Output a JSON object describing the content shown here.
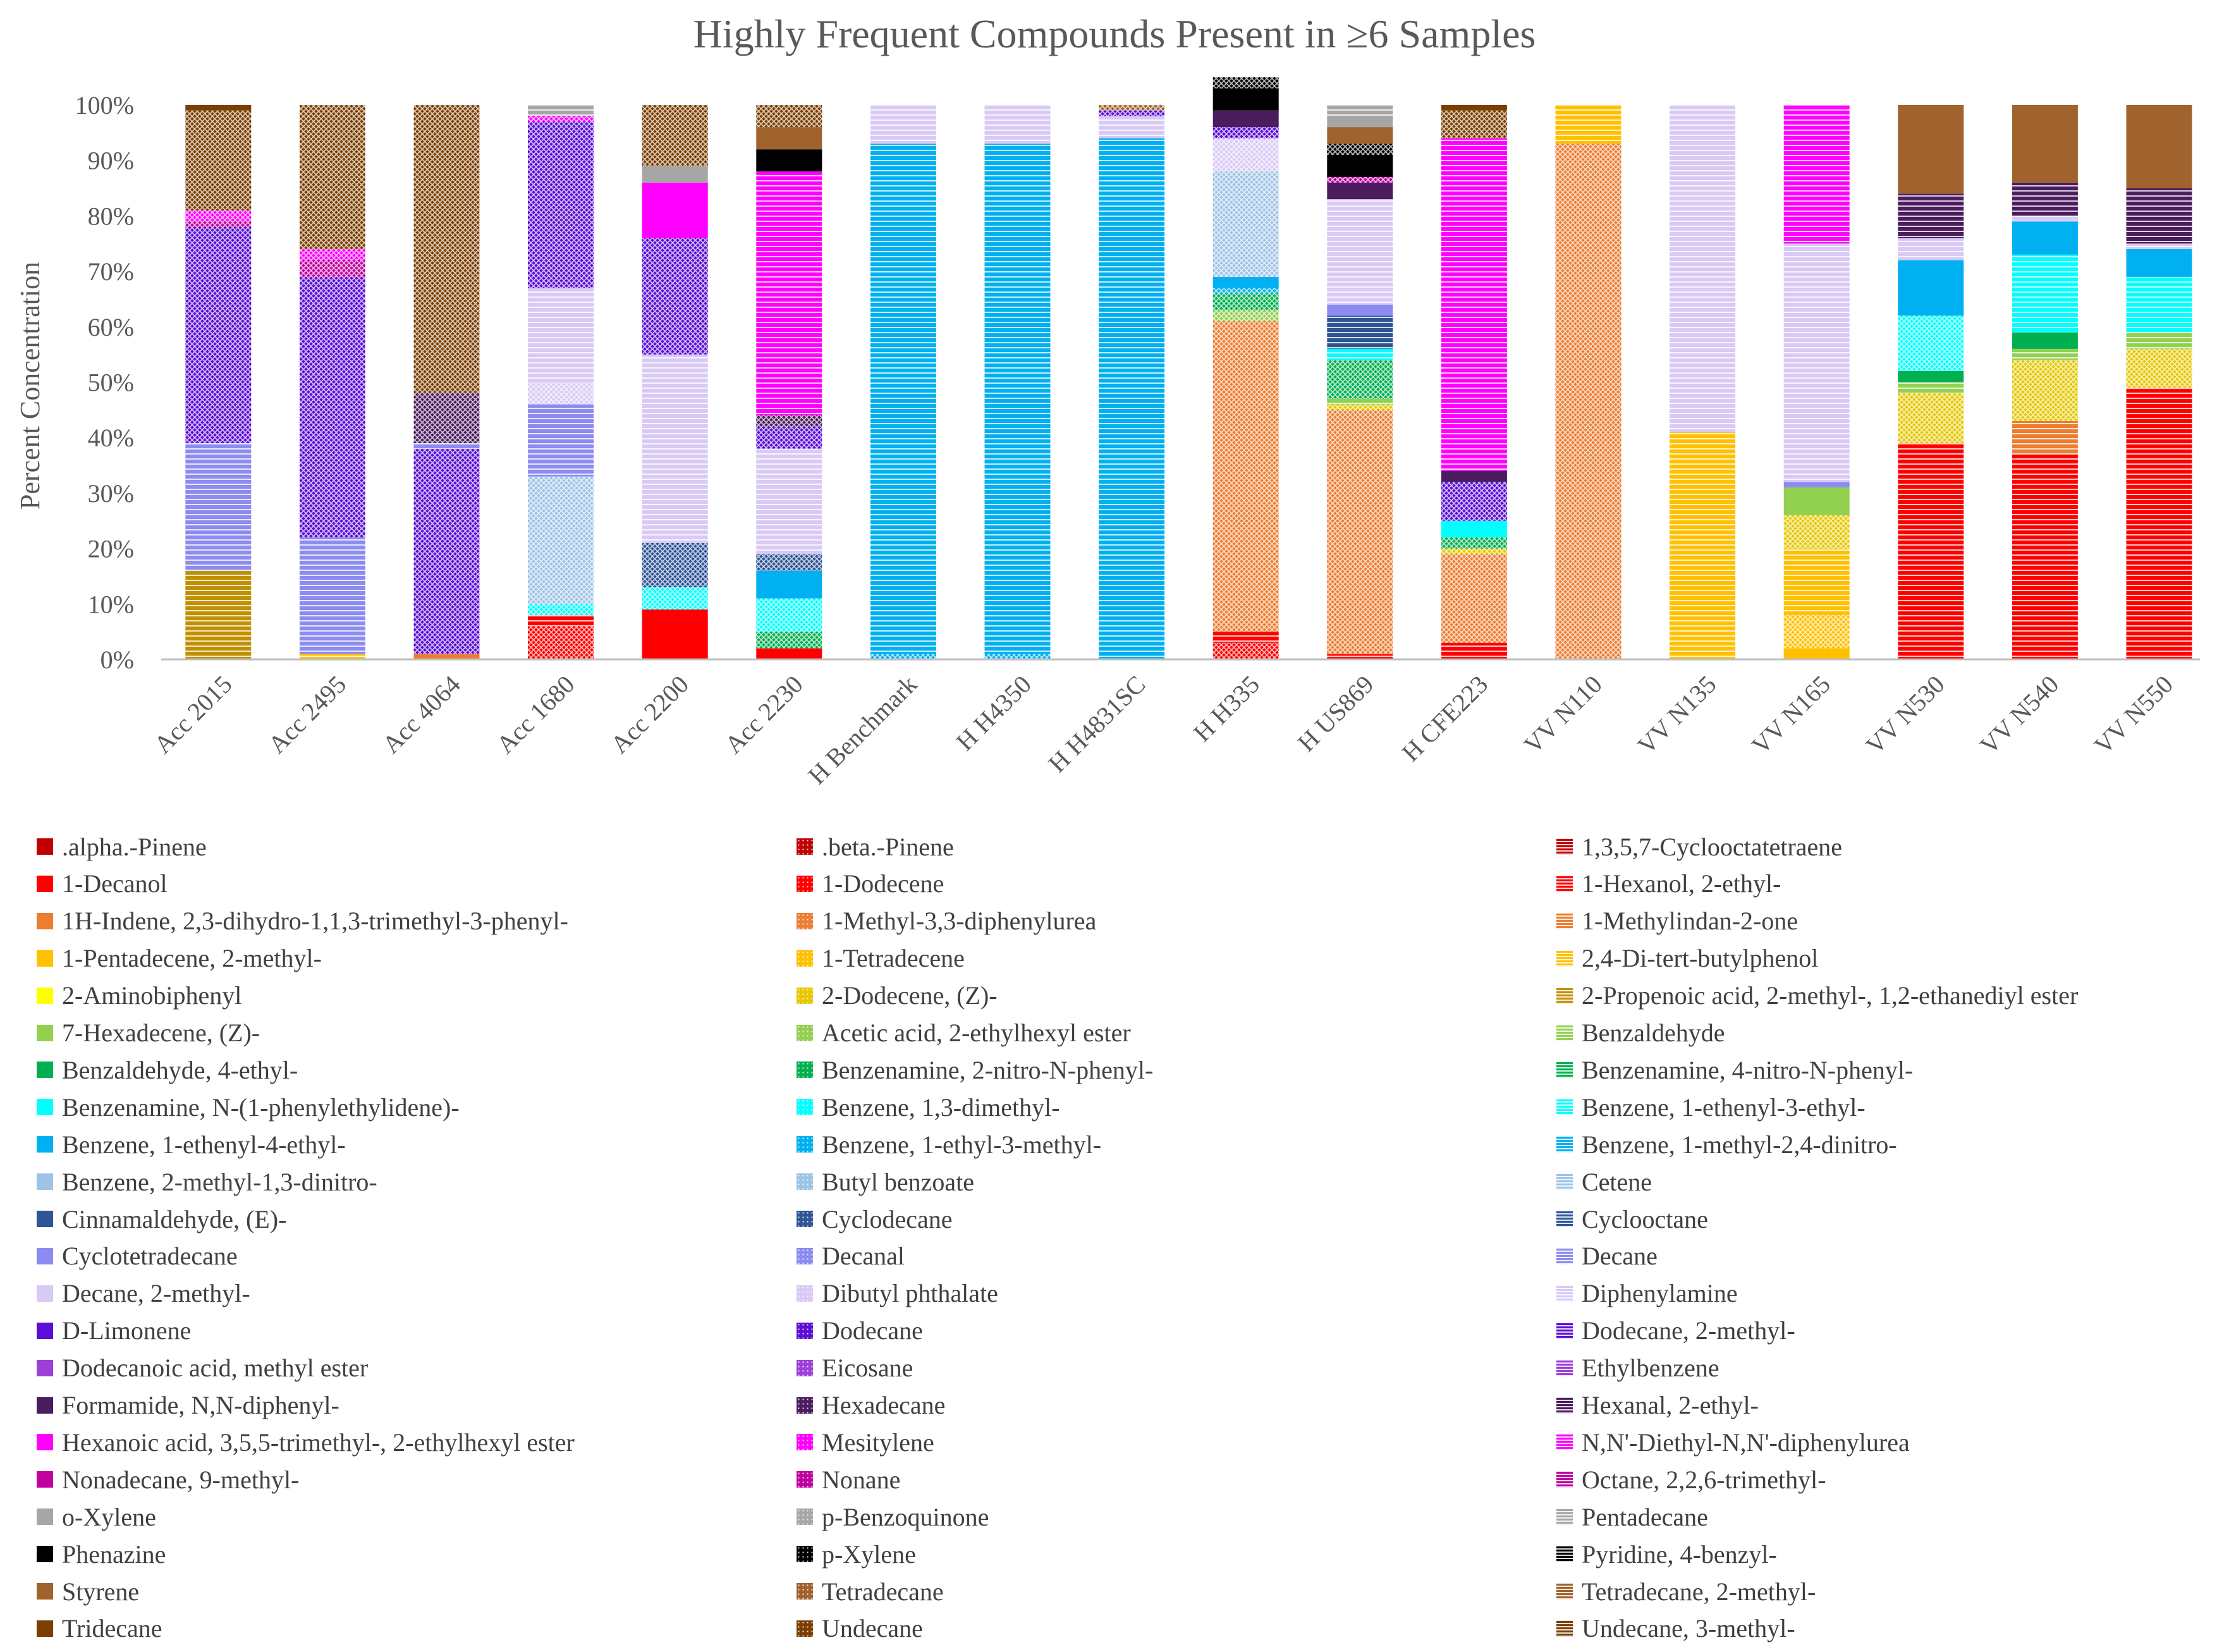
{
  "chart_data": {
    "type": "bar",
    "stacked": true,
    "title": "Highly Frequent Compounds Present in ≥6 Samples",
    "xlabel": "",
    "ylabel": "Percent Concentration",
    "ylim": [
      0,
      100
    ],
    "yticks": [
      "0%",
      "10%",
      "20%",
      "30%",
      "40%",
      "50%",
      "60%",
      "70%",
      "80%",
      "90%",
      "100%"
    ],
    "grid": false,
    "legend_position": "bottom",
    "categories": [
      "Acc 2015",
      "Acc 2495",
      "Acc 4064",
      "Acc 1680",
      "Acc 2200",
      "Acc 2230",
      "H Benchmark",
      "H H4350",
      "H H4831SC",
      "H H335",
      "H US869",
      "H CFE223",
      "VV N110",
      "VV N135",
      "VV N165",
      "VV N530",
      "VV N540",
      "VV N550"
    ],
    "legend": [
      {
        "name": ".alpha.-Pinene",
        "color": "#C00000",
        "pattern": "solid"
      },
      {
        "name": ".beta.-Pinene",
        "color": "#C00000",
        "pattern": "dots"
      },
      {
        "name": "1,3,5,7-Cyclooctatetraene",
        "color": "#C00000",
        "pattern": "lines"
      },
      {
        "name": "1-Decanol",
        "color": "#FF0000",
        "pattern": "solid"
      },
      {
        "name": "1-Dodecene",
        "color": "#FF0000",
        "pattern": "dots"
      },
      {
        "name": "1-Hexanol, 2-ethyl-",
        "color": "#FF0000",
        "pattern": "lines"
      },
      {
        "name": "1H-Indene, 2,3-dihydro-1,1,3-trimethyl-3-phenyl-",
        "color": "#ED7D31",
        "pattern": "solid"
      },
      {
        "name": "1-Methyl-3,3-diphenylurea",
        "color": "#ED7D31",
        "pattern": "dots"
      },
      {
        "name": "1-Methylindan-2-one",
        "color": "#ED7D31",
        "pattern": "lines"
      },
      {
        "name": "1-Pentadecene, 2-methyl-",
        "color": "#FFC000",
        "pattern": "solid"
      },
      {
        "name": "1-Tetradecene",
        "color": "#FFC000",
        "pattern": "dots"
      },
      {
        "name": "2,4-Di-tert-butylphenol",
        "color": "#FFC000",
        "pattern": "lines"
      },
      {
        "name": "2-Aminobiphenyl",
        "color": "#FFFF00",
        "pattern": "solid"
      },
      {
        "name": "2-Dodecene, (Z)-",
        "color": "#E5C800",
        "pattern": "dots"
      },
      {
        "name": "2-Propenoic acid, 2-methyl-, 1,2-ethanediyl ester",
        "color": "#BF9000",
        "pattern": "lines"
      },
      {
        "name": "7-Hexadecene, (Z)-",
        "color": "#92D050",
        "pattern": "solid"
      },
      {
        "name": "Acetic acid, 2-ethylhexyl ester",
        "color": "#92D050",
        "pattern": "dots"
      },
      {
        "name": "Benzaldehyde",
        "color": "#92D050",
        "pattern": "lines"
      },
      {
        "name": "Benzaldehyde, 4-ethyl-",
        "color": "#00B050",
        "pattern": "solid"
      },
      {
        "name": "Benzenamine, 2-nitro-N-phenyl-",
        "color": "#00B050",
        "pattern": "dots"
      },
      {
        "name": "Benzenamine, 4-nitro-N-phenyl-",
        "color": "#00B050",
        "pattern": "lines"
      },
      {
        "name": "Benzenamine, N-(1-phenylethylidene)-",
        "color": "#00FFFF",
        "pattern": "solid"
      },
      {
        "name": "Benzene, 1,3-dimethyl-",
        "color": "#00FFFF",
        "pattern": "dots"
      },
      {
        "name": "Benzene, 1-ethenyl-3-ethyl-",
        "color": "#00FFFF",
        "pattern": "lines"
      },
      {
        "name": "Benzene, 1-ethenyl-4-ethyl-",
        "color": "#00B0F0",
        "pattern": "solid"
      },
      {
        "name": "Benzene, 1-ethyl-3-methyl-",
        "color": "#00B0F0",
        "pattern": "dots"
      },
      {
        "name": "Benzene, 1-methyl-2,4-dinitro-",
        "color": "#00B0F0",
        "pattern": "lines"
      },
      {
        "name": "Benzene, 2-methyl-1,3-dinitro-",
        "color": "#9DC3E6",
        "pattern": "solid"
      },
      {
        "name": "Butyl benzoate",
        "color": "#9DC3E6",
        "pattern": "dots"
      },
      {
        "name": "Cetene",
        "color": "#9DC3E6",
        "pattern": "lines"
      },
      {
        "name": "Cinnamaldehyde, (E)-",
        "color": "#2F5597",
        "pattern": "solid"
      },
      {
        "name": "Cyclodecane",
        "color": "#2F5597",
        "pattern": "dots"
      },
      {
        "name": "Cyclooctane",
        "color": "#2F5597",
        "pattern": "lines"
      },
      {
        "name": "Cyclotetradecane",
        "color": "#8B8BF0",
        "pattern": "solid"
      },
      {
        "name": "Decanal",
        "color": "#8B8BF0",
        "pattern": "dots"
      },
      {
        "name": "Decane",
        "color": "#8B8BF0",
        "pattern": "lines"
      },
      {
        "name": "Decane, 2-methyl-",
        "color": "#D9C9F5",
        "pattern": "solid"
      },
      {
        "name": "Dibutyl phthalate",
        "color": "#D9C9F5",
        "pattern": "dots"
      },
      {
        "name": "Diphenylamine",
        "color": "#D9C9F5",
        "pattern": "lines"
      },
      {
        "name": "D-Limonene",
        "color": "#5B0FD6",
        "pattern": "solid"
      },
      {
        "name": "Dodecane",
        "color": "#5B0FD6",
        "pattern": "dots"
      },
      {
        "name": "Dodecane, 2-methyl-",
        "color": "#5B0FD6",
        "pattern": "lines"
      },
      {
        "name": "Dodecanoic acid, methyl ester",
        "color": "#9E40D8",
        "pattern": "solid"
      },
      {
        "name": "Eicosane",
        "color": "#9E40D8",
        "pattern": "dots"
      },
      {
        "name": "Ethylbenzene",
        "color": "#9E40D8",
        "pattern": "lines"
      },
      {
        "name": "Formamide, N,N-diphenyl-",
        "color": "#4B1C5E",
        "pattern": "solid"
      },
      {
        "name": "Hexadecane",
        "color": "#4B1C5E",
        "pattern": "dots"
      },
      {
        "name": "Hexanal, 2-ethyl-",
        "color": "#4B1C5E",
        "pattern": "lines"
      },
      {
        "name": "Hexanoic acid, 3,5,5-trimethyl-, 2-ethylhexyl ester",
        "color": "#FF00FF",
        "pattern": "solid"
      },
      {
        "name": "Mesitylene",
        "color": "#FF00FF",
        "pattern": "dots"
      },
      {
        "name": "N,N'-Diethyl-N,N'-diphenylurea",
        "color": "#FF00FF",
        "pattern": "lines"
      },
      {
        "name": "Nonadecane, 9-methyl-",
        "color": "#C000A0",
        "pattern": "solid"
      },
      {
        "name": "Nonane",
        "color": "#C000A0",
        "pattern": "dots"
      },
      {
        "name": "Octane, 2,2,6-trimethyl-",
        "color": "#C000A0",
        "pattern": "lines"
      },
      {
        "name": "o-Xylene",
        "color": "#A6A6A6",
        "pattern": "solid"
      },
      {
        "name": "p-Benzoquinone",
        "color": "#A6A6A6",
        "pattern": "dots"
      },
      {
        "name": "Pentadecane",
        "color": "#A6A6A6",
        "pattern": "lines"
      },
      {
        "name": "Phenazine",
        "color": "#000000",
        "pattern": "solid"
      },
      {
        "name": "p-Xylene",
        "color": "#000000",
        "pattern": "dots"
      },
      {
        "name": "Pyridine, 4-benzyl-",
        "color": "#000000",
        "pattern": "lines"
      },
      {
        "name": "Styrene",
        "color": "#A0632E",
        "pattern": "solid"
      },
      {
        "name": "Tetradecane",
        "color": "#A0632E",
        "pattern": "dots"
      },
      {
        "name": "Tetradecane, 2-methyl-",
        "color": "#A0632E",
        "pattern": "lines"
      },
      {
        "name": "Tridecane",
        "color": "#7B3F00",
        "pattern": "solid"
      },
      {
        "name": "Undecane",
        "color": "#7B3F00",
        "pattern": "dots"
      },
      {
        "name": "Undecane, 3-methyl-",
        "color": "#7B3F00",
        "pattern": "lines"
      }
    ],
    "stacks": [
      [
        [
          "2-Propenoic acid, 2-methyl-, 1,2-ethanediyl ester",
          16
        ],
        [
          "Decane",
          23
        ],
        [
          "Dodecane",
          39
        ],
        [
          "Nonane",
          1
        ],
        [
          "Mesitylene",
          2
        ],
        [
          "Undecane",
          18
        ],
        [
          "Tridecane",
          1
        ]
      ],
      [
        [
          "2,4-Di-tert-butylphenol",
          1
        ],
        [
          "Decane",
          21
        ],
        [
          "Dodecane",
          47
        ],
        [
          "Nonane",
          3
        ],
        [
          "Mesitylene",
          2
        ],
        [
          "Undecane",
          26
        ]
      ],
      [
        [
          "1H-Indene, 2,3-dihydro-1,1,3-trimethyl-3-phenyl-",
          1
        ],
        [
          "Dodecane",
          37
        ],
        [
          "Decane",
          1
        ],
        [
          "Hexadecane",
          9
        ],
        [
          "Undecane",
          52
        ]
      ],
      [
        [
          "1-Dodecene",
          6
        ],
        [
          "1-Hexanol, 2-ethyl-",
          2
        ],
        [
          "Benzene, 1,3-dimethyl-",
          2
        ],
        [
          "Butyl benzoate",
          23
        ],
        [
          "Decane",
          13
        ],
        [
          "Dibutyl phthalate",
          4
        ],
        [
          "Diphenylamine",
          17
        ],
        [
          "Dodecane",
          30
        ],
        [
          "Mesitylene",
          1
        ],
        [
          "Pentadecane",
          2
        ]
      ],
      [
        [
          "1-Decanol",
          9
        ],
        [
          "Benzene, 1,3-dimethyl-",
          4
        ],
        [
          "Cyclodecane",
          8
        ],
        [
          "Diphenylamine",
          34
        ],
        [
          "Dodecane",
          21
        ],
        [
          "Hexanoic acid, 3,5,5-trimethyl-, 2-ethylhexyl ester",
          10
        ],
        [
          "o-Xylene",
          3
        ],
        [
          "Undecane",
          11
        ]
      ],
      [
        [
          "1-Decanol",
          2
        ],
        [
          "Benzenamine, 2-nitro-N-phenyl-",
          3
        ],
        [
          "Benzene, 1,3-dimethyl-",
          6
        ],
        [
          "Benzene, 1-ethenyl-4-ethyl-",
          5
        ],
        [
          "Cyclodecane",
          3
        ],
        [
          "Diphenylamine",
          19
        ],
        [
          "Dodecane",
          4
        ],
        [
          "Hexadecane",
          2
        ],
        [
          "N,N'-Diethyl-N,N'-diphenylurea",
          44
        ],
        [
          "Phenazine",
          4
        ],
        [
          "Styrene",
          4
        ],
        [
          "Undecane",
          4
        ]
      ],
      [
        [
          "Benzene, 1-ethyl-3-methyl-",
          1
        ],
        [
          "Benzene, 1-methyl-2,4-dinitro-",
          92
        ],
        [
          "Diphenylamine",
          7
        ]
      ],
      [
        [
          "Benzene, 1-ethyl-3-methyl-",
          1
        ],
        [
          "Benzene, 1-methyl-2,4-dinitro-",
          92
        ],
        [
          "Diphenylamine",
          7
        ]
      ],
      [
        [
          "Benzene, 1-methyl-2,4-dinitro-",
          94
        ],
        [
          "Diphenylamine",
          4
        ],
        [
          "Dodecane",
          1
        ],
        [
          "Tetradecane",
          1
        ]
      ],
      [
        [
          "1-Dodecene",
          3
        ],
        [
          "1-Hexanol, 2-ethyl-",
          2
        ],
        [
          "1-Methyl-3,3-diphenylurea",
          56
        ],
        [
          "Acetic acid, 2-ethylhexyl ester",
          2
        ],
        [
          "Benzenamine, 2-nitro-N-phenyl-",
          3
        ],
        [
          "Benzene, 1-ethyl-3-methyl-",
          1
        ],
        [
          "Benzene, 1-ethenyl-4-ethyl-",
          2
        ],
        [
          "Butyl benzoate",
          19
        ],
        [
          "Dibutyl phthalate",
          6
        ],
        [
          "Dodecane",
          2
        ],
        [
          "Formamide, N,N-diphenyl-",
          3
        ],
        [
          "Phenazine",
          4
        ],
        [
          "p-Xylene",
          2
        ]
      ],
      [
        [
          "1-Hexanol, 2-ethyl-",
          1
        ],
        [
          "1-Methyl-3,3-diphenylurea",
          44
        ],
        [
          "2-Dodecene, (Z)-",
          1
        ],
        [
          "Benzaldehyde",
          1
        ],
        [
          "Benzenamine, 2-nitro-N-phenyl-",
          7
        ],
        [
          "Benzene, 1-ethenyl-3-ethyl-",
          2
        ],
        [
          "Cyclooctane",
          6
        ],
        [
          "Cyclotetradecane",
          2
        ],
        [
          "Diphenylamine",
          19
        ],
        [
          "Formamide, N,N-diphenyl-",
          3
        ],
        [
          "Nonane",
          1
        ],
        [
          "Phenazine",
          4
        ],
        [
          "p-Xylene",
          2
        ],
        [
          "Styrene",
          3
        ],
        [
          "o-Xylene",
          2
        ],
        [
          "Pentadecane",
          2
        ]
      ],
      [
        [
          "1-Hexanol, 2-ethyl-",
          3
        ],
        [
          "1-Methyl-3,3-diphenylurea",
          16
        ],
        [
          "2-Dodecene, (Z)-",
          1
        ],
        [
          "Benzenamine, 2-nitro-N-phenyl-",
          2
        ],
        [
          "Benzenamine, N-(1-phenylethylidene)-",
          3
        ],
        [
          "Dodecane",
          7
        ],
        [
          "Formamide, N,N-diphenyl-",
          2
        ],
        [
          "N,N'-Diethyl-N,N'-diphenylurea",
          60
        ],
        [
          "Undecane",
          5
        ],
        [
          "Tridecane",
          1
        ]
      ],
      [
        [
          "1-Methyl-3,3-diphenylurea",
          93
        ],
        [
          "2,4-Di-tert-butylphenol",
          7
        ]
      ],
      [
        [
          "2,4-Di-tert-butylphenol",
          41
        ],
        [
          "Diphenylamine",
          59
        ]
      ],
      [
        [
          "1-Pentadecene, 2-methyl-",
          2
        ],
        [
          "1-Tetradecene",
          6
        ],
        [
          "2,4-Di-tert-butylphenol",
          12
        ],
        [
          "2-Dodecene, (Z)-",
          6
        ],
        [
          "7-Hexadecene, (Z)-",
          5
        ],
        [
          "Cyclotetradecane",
          1
        ],
        [
          "Diphenylamine",
          43
        ],
        [
          "N,N'-Diethyl-N,N'-diphenylurea",
          25
        ]
      ],
      [
        [
          "1-Hexanol, 2-ethyl-",
          39
        ],
        [
          "2-Dodecene, (Z)-",
          9
        ],
        [
          "Benzaldehyde",
          2
        ],
        [
          "Benzaldehyde, 4-ethyl-",
          2
        ],
        [
          "Benzene, 1,3-dimethyl-",
          10
        ],
        [
          "Benzene, 1-ethenyl-4-ethyl-",
          10
        ],
        [
          "Diphenylamine",
          4
        ],
        [
          "Hexanal, 2-ethyl-",
          8
        ],
        [
          "Styrene",
          16
        ]
      ],
      [
        [
          "1-Hexanol, 2-ethyl-",
          37
        ],
        [
          "1-Methylindan-2-one",
          6
        ],
        [
          "2-Dodecene, (Z)-",
          11
        ],
        [
          "Benzaldehyde",
          2
        ],
        [
          "Benzaldehyde, 4-ethyl-",
          3
        ],
        [
          "Benzene, 1-ethenyl-3-ethyl-",
          14
        ],
        [
          "Benzene, 1-ethenyl-4-ethyl-",
          6
        ],
        [
          "Diphenylamine",
          1
        ],
        [
          "Hexanal, 2-ethyl-",
          6
        ],
        [
          "Styrene",
          14
        ]
      ],
      [
        [
          "1-Hexanol, 2-ethyl-",
          49
        ],
        [
          "2-Dodecene, (Z)-",
          7
        ],
        [
          "Benzaldehyde",
          3
        ],
        [
          "Benzene, 1-ethenyl-3-ethyl-",
          10
        ],
        [
          "Benzene, 1-ethenyl-4-ethyl-",
          5
        ],
        [
          "Diphenylamine",
          1
        ],
        [
          "Hexanal, 2-ethyl-",
          10
        ],
        [
          "Styrene",
          15
        ]
      ]
    ]
  }
}
